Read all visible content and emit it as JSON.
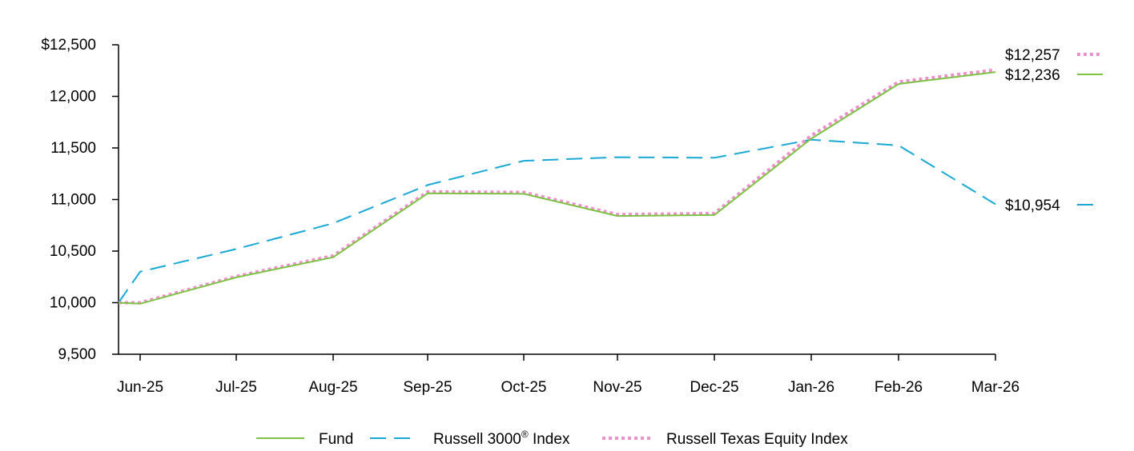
{
  "chart_data": {
    "type": "line",
    "x": [
      "",
      "Jun-25",
      "Jul-25",
      "Aug-25",
      "Sep-25",
      "Oct-25",
      "Nov-25",
      "Dec-25",
      "Jan-26",
      "Feb-26",
      "Mar-26"
    ],
    "xticks": [
      "Jun-25",
      "Jul-25",
      "Aug-25",
      "Sep-25",
      "Oct-25",
      "Nov-25",
      "Dec-25",
      "Jan-26",
      "Feb-26",
      "Mar-26"
    ],
    "yticks": [
      "$12,500",
      "12,000",
      "11,500",
      "11,000",
      "10,500",
      "10,000",
      "9,500"
    ],
    "ylim": [
      9500,
      12500
    ],
    "grid": false,
    "legend_position": "bottom",
    "series": [
      {
        "name": "Fund",
        "style": "solid",
        "color": "#7dc242",
        "values": [
          10000,
          9990,
          10245,
          10440,
          11060,
          11055,
          10840,
          10850,
          11590,
          12120,
          12236
        ],
        "end_label": "$12,236"
      },
      {
        "name": "Russell 3000® Index",
        "name_main": "Russell 3000",
        "name_sup": "®",
        "name_tail": " Index",
        "style": "dashed",
        "color": "#1aa9d6",
        "values": [
          10000,
          10300,
          10520,
          10770,
          11140,
          11375,
          11410,
          11405,
          11580,
          11525,
          10954
        ],
        "end_label": "$10,954"
      },
      {
        "name": "Russell Texas Equity Index",
        "style": "dotted",
        "color": "#ee8fd0",
        "values": [
          10000,
          10000,
          10255,
          10455,
          11075,
          11070,
          10855,
          10865,
          11620,
          12140,
          12257
        ],
        "end_label": "$12,257"
      }
    ]
  }
}
